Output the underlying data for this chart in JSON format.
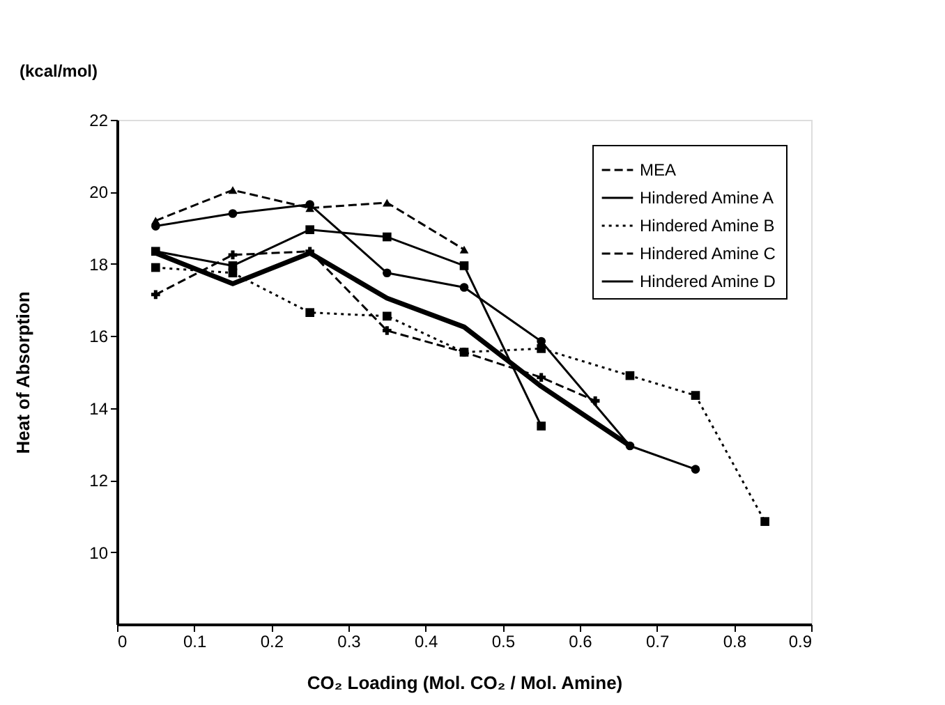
{
  "chart_data": {
    "type": "line",
    "xlabel": "CO₂ Loading (Mol. CO₂ / Mol. Amine)",
    "ylabel": "Heat of Absorption",
    "annotations": [
      "(kcal/mol)"
    ],
    "xlim": [
      0,
      0.9
    ],
    "xticks": [
      0,
      0.1,
      0.2,
      0.3,
      0.4,
      0.5,
      0.6,
      0.7,
      0.8,
      0.9
    ],
    "ylim": [
      8,
      22
    ],
    "yticks": [
      10,
      12,
      14,
      16,
      18,
      20,
      22
    ],
    "grid": false,
    "legend": "top right",
    "series": [
      {
        "name": "MEA",
        "color": "#000000",
        "marker": "triangle",
        "line_style": "dashed",
        "x": [
          0.05,
          0.15,
          0.25,
          0.35,
          0.45
        ],
        "values": [
          19.2,
          20.05,
          19.55,
          19.7,
          18.4
        ]
      },
      {
        "name": "Hindered Amine A",
        "color": "#000000",
        "marker": "circle",
        "line_style": "solid",
        "x": [
          0.05,
          0.15,
          0.25,
          0.35,
          0.45,
          0.55,
          0.665,
          0.75
        ],
        "values": [
          19.05,
          19.4,
          19.65,
          17.75,
          17.35,
          15.85,
          12.95,
          12.3
        ]
      },
      {
        "name": "Hindered Amine B",
        "color": "#000000",
        "marker": "square",
        "line_style": "dotted",
        "x": [
          0.05,
          0.15,
          0.25,
          0.35,
          0.45,
          0.55,
          0.665,
          0.75,
          0.84
        ],
        "values": [
          17.9,
          17.75,
          16.65,
          16.55,
          15.55,
          15.65,
          14.9,
          14.35,
          10.85
        ]
      },
      {
        "name": "Hindered Amine C",
        "color": "#000000",
        "marker": "cross",
        "line_style": "dashed",
        "x": [
          0.05,
          0.15,
          0.25,
          0.35,
          0.45,
          0.55,
          0.62
        ],
        "values": [
          17.15,
          18.25,
          18.35,
          16.15,
          15.55,
          14.85,
          14.2
        ]
      },
      {
        "name": "Hindered Amine D",
        "color": "#000000",
        "marker": "square",
        "line_style": "solid",
        "x": [
          0.05,
          0.15,
          0.25,
          0.35,
          0.45,
          0.55
        ],
        "values": [
          18.35,
          17.95,
          18.95,
          18.75,
          17.95,
          13.5
        ]
      },
      {
        "color": "#000000",
        "marker": "none",
        "line_style": "solid",
        "x": [
          0.05,
          0.15,
          0.25,
          0.35,
          0.45,
          0.55,
          0.665
        ],
        "values": [
          18.3,
          17.45,
          18.3,
          17.05,
          16.25,
          14.6,
          12.95
        ]
      }
    ]
  }
}
